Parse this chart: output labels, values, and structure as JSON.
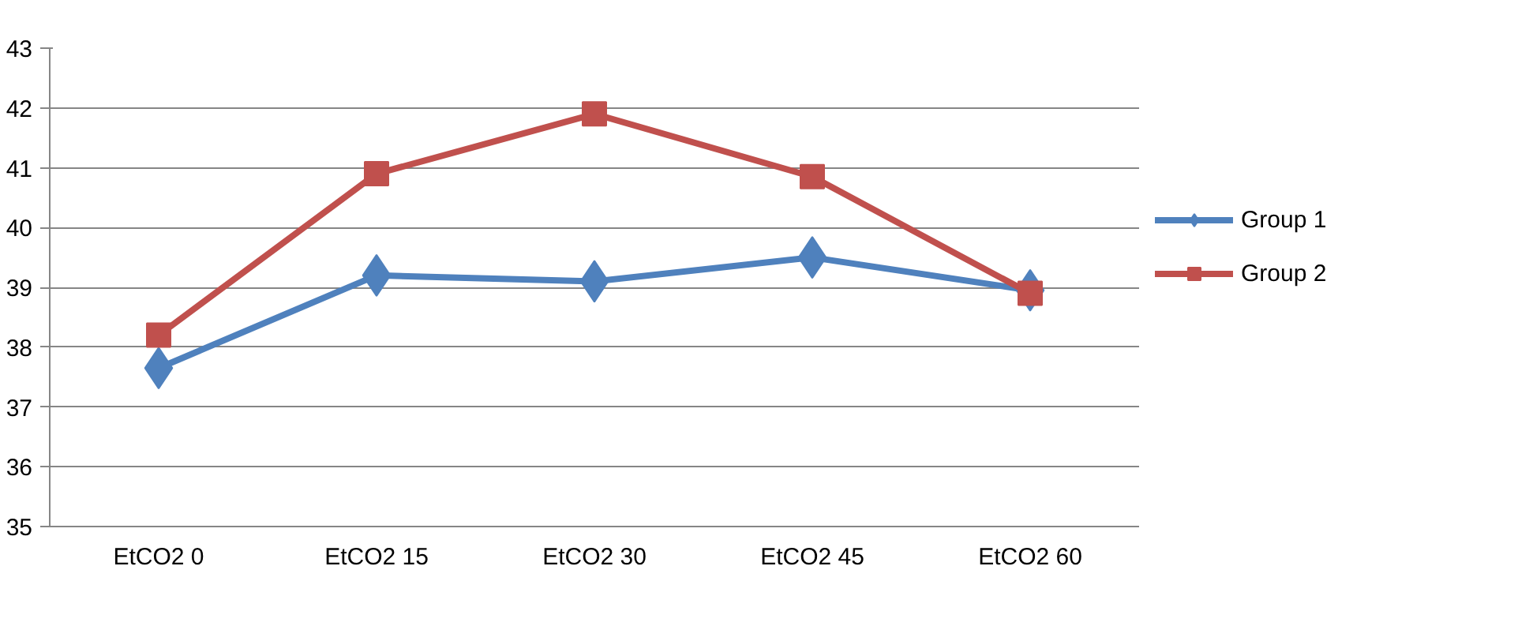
{
  "chart_data": {
    "type": "line",
    "categories": [
      "EtCO2 0",
      "EtCO2 15",
      "EtCO2 30",
      "EtCO2 45",
      "EtCO2 60"
    ],
    "series": [
      {
        "name": "Group 1",
        "color": "#4f81bd",
        "marker": "diamond",
        "values": [
          37.65,
          39.2,
          39.1,
          39.5,
          38.95
        ]
      },
      {
        "name": "Group 2",
        "color": "#c0504d",
        "marker": "square",
        "values": [
          38.2,
          40.9,
          41.9,
          40.85,
          38.9
        ]
      }
    ],
    "ylim": [
      35,
      43
    ],
    "yticks": [
      35,
      36,
      37,
      38,
      39,
      40,
      41,
      42,
      43
    ],
    "grid": "y",
    "legend": "right",
    "line_style": "solid"
  }
}
